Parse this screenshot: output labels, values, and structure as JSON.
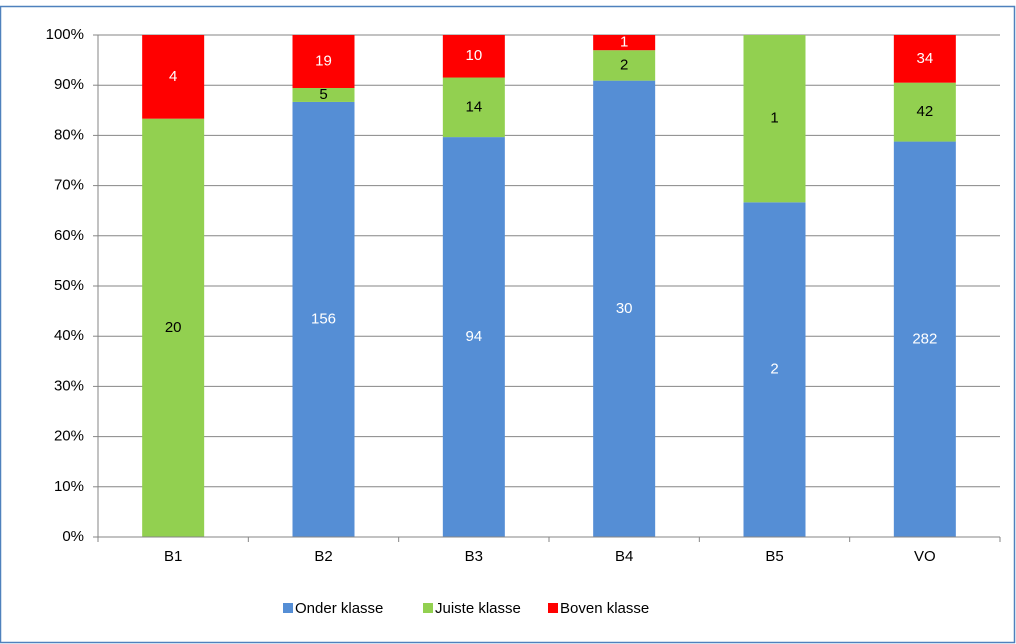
{
  "chart_data": {
    "type": "bar",
    "stacking": "percent",
    "categories": [
      "B1",
      "B2",
      "B3",
      "B4",
      "B5",
      "VO"
    ],
    "series": [
      {
        "name": "Onder klasse",
        "color": "#558ed5",
        "label_color": "#ffffff",
        "values": [
          0,
          156,
          94,
          30,
          2,
          282
        ]
      },
      {
        "name": "Juiste klasse",
        "color": "#92d050",
        "label_color": "#000000",
        "values": [
          20,
          5,
          14,
          2,
          1,
          42
        ]
      },
      {
        "name": "Boven klasse",
        "color": "#ff0000",
        "label_color": "#ffffff",
        "values": [
          4,
          19,
          10,
          1,
          0,
          34
        ]
      }
    ],
    "ylim": [
      0,
      100
    ],
    "yticks": [
      {
        "value": 0,
        "label": "0%"
      },
      {
        "value": 10,
        "label": "10%"
      },
      {
        "value": 20,
        "label": "20%"
      },
      {
        "value": 30,
        "label": "30%"
      },
      {
        "value": 40,
        "label": "40%"
      },
      {
        "value": 50,
        "label": "50%"
      },
      {
        "value": 60,
        "label": "60%"
      },
      {
        "value": 70,
        "label": "70%"
      },
      {
        "value": 80,
        "label": "80%"
      },
      {
        "value": 90,
        "label": "90%"
      },
      {
        "value": 100,
        "label": "100%"
      }
    ],
    "grid": true,
    "legend": "bottom"
  }
}
